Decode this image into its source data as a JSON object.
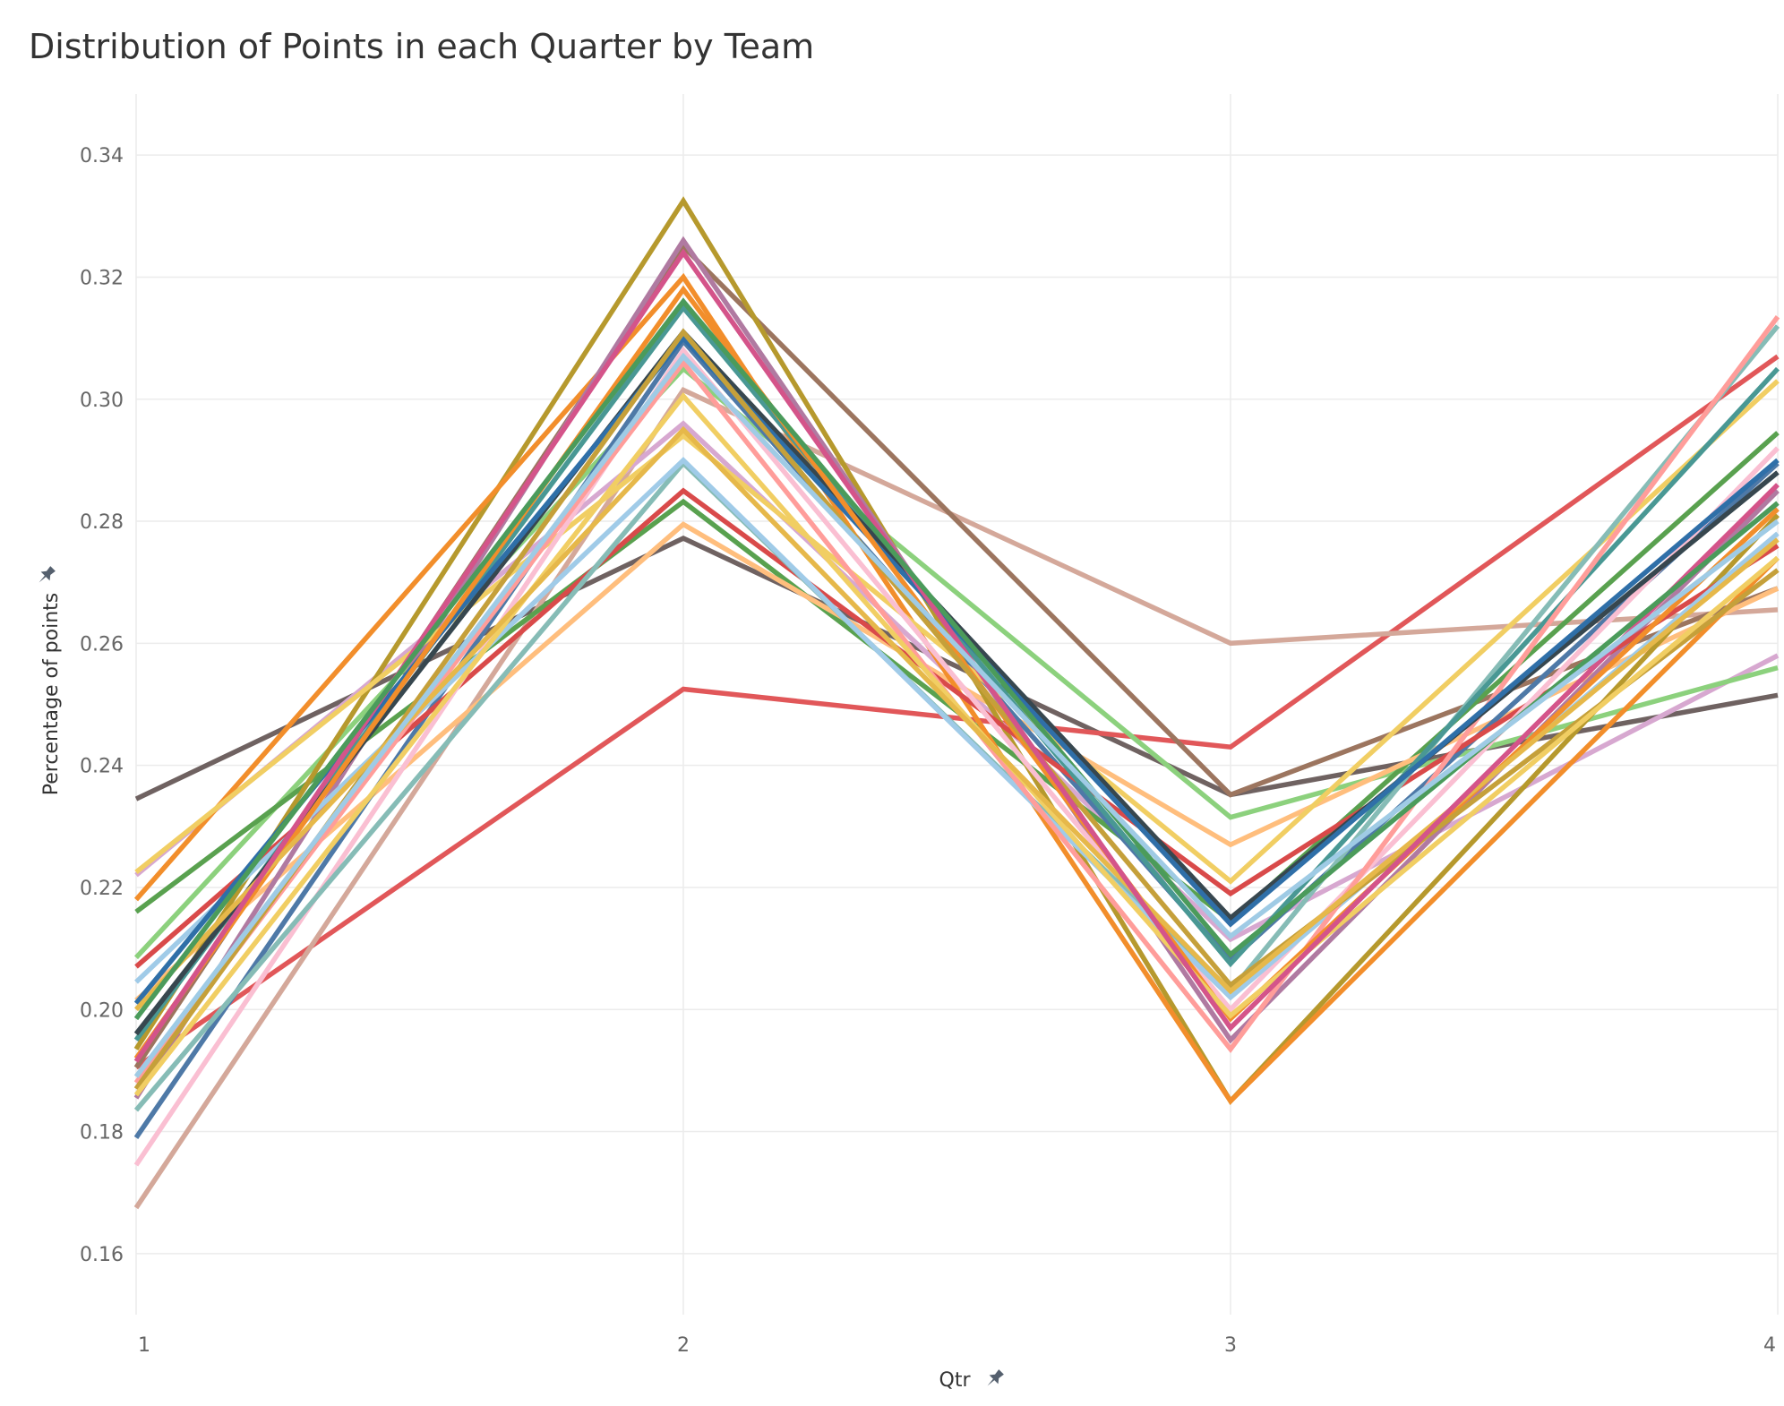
{
  "chart_data": {
    "type": "line",
    "title": "Distribution of Points in each Quarter by Team",
    "xlabel": "Qtr",
    "ylabel": "Percentage of points",
    "x": [
      1,
      2,
      3,
      4
    ],
    "x_tick_labels": [
      "1",
      "2",
      "3",
      "4"
    ],
    "ylim": [
      0.15,
      0.35
    ],
    "y_ticks": [
      0.16,
      0.18,
      0.2,
      0.22,
      0.24,
      0.26,
      0.28,
      0.3,
      0.32,
      0.34
    ],
    "y_tick_labels": [
      "0.16",
      "0.18",
      "0.20",
      "0.22",
      "0.24",
      "0.26",
      "0.28",
      "0.30",
      "0.32",
      "0.34"
    ],
    "grid": true,
    "legend": "none",
    "axis_title_icon": "pin-icon",
    "series": [
      {
        "values": [
          0.2345,
          0.2772,
          0.2352,
          0.2515
        ],
        "color": "#6f6261"
      },
      {
        "values": [
          0.1905,
          0.2525,
          0.243,
          0.307
        ],
        "color": "#e15759"
      },
      {
        "values": [
          0.1675,
          0.3015,
          0.26,
          0.2655
        ],
        "color": "#d4a89a"
      },
      {
        "values": [
          0.1905,
          0.325,
          0.2352,
          0.269
        ],
        "color": "#9c755f"
      },
      {
        "values": [
          0.222,
          0.296,
          0.2115,
          0.258
        ],
        "color": "#d7a8d0"
      },
      {
        "values": [
          0.2085,
          0.305,
          0.2315,
          0.256
        ],
        "color": "#8cd17d"
      },
      {
        "values": [
          0.216,
          0.2832,
          0.2145,
          0.2945
        ],
        "color": "#59a14f"
      },
      {
        "values": [
          0.2015,
          0.2795,
          0.227,
          0.269
        ],
        "color": "#ffbe7d"
      },
      {
        "values": [
          0.179,
          0.3095,
          0.208,
          0.2895
        ],
        "color": "#4e79a7"
      },
      {
        "values": [
          0.1935,
          0.3325,
          0.185,
          0.281
        ],
        "color": "#b6992d"
      },
      {
        "values": [
          0.218,
          0.32,
          0.185,
          0.274
        ],
        "color": "#f28e2b"
      },
      {
        "values": [
          0.1855,
          0.326,
          0.195,
          0.285
        ],
        "color": "#b07aa1"
      },
      {
        "values": [
          0.207,
          0.285,
          0.219,
          0.276
        ],
        "color": "#d94a4a"
      },
      {
        "values": [
          0.2225,
          0.294,
          0.221,
          0.303
        ],
        "color": "#f1ce63"
      },
      {
        "values": [
          0.1745,
          0.308,
          0.2,
          0.292
        ],
        "color": "#fabfd2"
      },
      {
        "values": [
          0.1835,
          0.2895,
          0.203,
          0.312
        ],
        "color": "#86bcb6"
      },
      {
        "values": [
          0.2045,
          0.29,
          0.202,
          0.278
        ],
        "color": "#a0cbe8"
      },
      {
        "values": [
          0.195,
          0.315,
          0.2075,
          0.305
        ],
        "color": "#499894"
      },
      {
        "values": [
          0.188,
          0.306,
          0.1935,
          0.3135
        ],
        "color": "#ff9d9a"
      },
      {
        "values": [
          0.196,
          0.311,
          0.215,
          0.288
        ],
        "color": "#37474f"
      },
      {
        "values": [
          0.201,
          0.31,
          0.214,
          0.29
        ],
        "color": "#2f6fa8"
      },
      {
        "values": [
          0.192,
          0.318,
          0.1985,
          0.282
        ],
        "color": "#f28e2b"
      },
      {
        "values": [
          0.187,
          0.311,
          0.204,
          0.272
        ],
        "color": "#c5a03a"
      },
      {
        "values": [
          0.186,
          0.3005,
          0.199,
          0.274
        ],
        "color": "#f1ce63"
      },
      {
        "values": [
          0.2,
          0.295,
          0.203,
          0.277
        ],
        "color": "#e6b84a"
      },
      {
        "values": [
          0.1915,
          0.324,
          0.197,
          0.286
        ],
        "color": "#d4548a"
      },
      {
        "values": [
          0.1985,
          0.316,
          0.209,
          0.283
        ],
        "color": "#4b9b5b"
      },
      {
        "values": [
          0.189,
          0.307,
          0.212,
          0.28
        ],
        "color": "#9fcbe5"
      }
    ]
  }
}
